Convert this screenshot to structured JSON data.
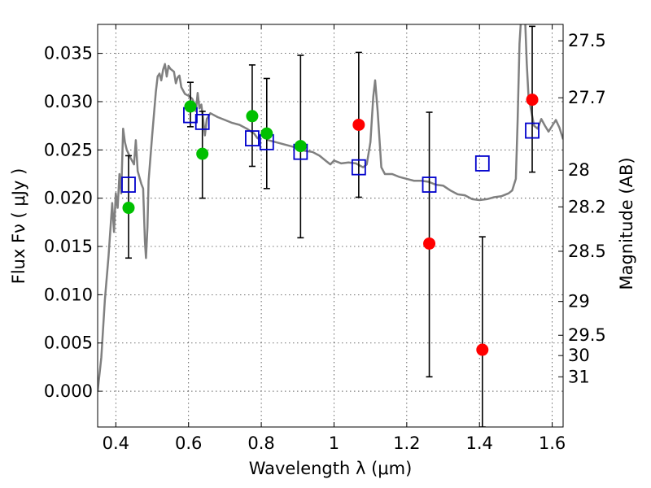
{
  "chart_data": {
    "type": "scatter",
    "xlabel": "Wavelength  λ (μm)",
    "ylabel": "Flux  Fν  ( μJy )",
    "ylabel_right": "Magnitude (AB)",
    "xlim": [
      0.35,
      1.63
    ],
    "ylim": [
      -0.0037,
      0.038
    ],
    "x_ticks": [
      0.4,
      0.6,
      0.8,
      1.0,
      1.2,
      1.4,
      1.6
    ],
    "x_tick_labels": [
      "0.4",
      "0.6",
      "0.8",
      "1",
      "1.2",
      "1.4",
      "1.6"
    ],
    "y_ticks": [
      0.0,
      0.005,
      0.01,
      0.015,
      0.02,
      0.025,
      0.03,
      0.035
    ],
    "y_tick_labels": [
      "0.000",
      "0.005",
      "0.010",
      "0.015",
      "0.020",
      "0.025",
      "0.030",
      "0.035"
    ],
    "right_ticks": [
      {
        "label": "27.5",
        "flux": 0.0363
      },
      {
        "label": "27.7",
        "flux": 0.0304
      },
      {
        "label": "28",
        "flux": 0.0229
      },
      {
        "label": "28.2",
        "flux": 0.0191
      },
      {
        "label": "28.5",
        "flux": 0.0145
      },
      {
        "label": "29",
        "flux": 0.0093
      },
      {
        "label": "29.5",
        "flux": 0.0058
      },
      {
        "label": "30",
        "flux": 0.0037
      },
      {
        "label": "31",
        "flux": 0.0015
      }
    ],
    "grid": true,
    "series": [
      {
        "style": "model-sed-line",
        "color": "#808080",
        "points": [
          [
            0.35,
            0.0
          ],
          [
            0.36,
            0.0035
          ],
          [
            0.37,
            0.0095
          ],
          [
            0.38,
            0.014
          ],
          [
            0.39,
            0.0195
          ],
          [
            0.395,
            0.0165
          ],
          [
            0.4,
            0.0205
          ],
          [
            0.405,
            0.019
          ],
          [
            0.41,
            0.0225
          ],
          [
            0.415,
            0.0205
          ],
          [
            0.42,
            0.0272
          ],
          [
            0.425,
            0.0258
          ],
          [
            0.43,
            0.025
          ],
          [
            0.44,
            0.0242
          ],
          [
            0.45,
            0.0235
          ],
          [
            0.455,
            0.026
          ],
          [
            0.46,
            0.0228
          ],
          [
            0.47,
            0.0215
          ],
          [
            0.475,
            0.021
          ],
          [
            0.48,
            0.0155
          ],
          [
            0.483,
            0.0138
          ],
          [
            0.487,
            0.017
          ],
          [
            0.49,
            0.0218
          ],
          [
            0.5,
            0.0265
          ],
          [
            0.51,
            0.031
          ],
          [
            0.515,
            0.0326
          ],
          [
            0.52,
            0.0329
          ],
          [
            0.525,
            0.0322
          ],
          [
            0.53,
            0.0333
          ],
          [
            0.535,
            0.0339
          ],
          [
            0.54,
            0.0326
          ],
          [
            0.545,
            0.0337
          ],
          [
            0.55,
            0.0334
          ],
          [
            0.56,
            0.0331
          ],
          [
            0.565,
            0.0319
          ],
          [
            0.57,
            0.0325
          ],
          [
            0.575,
            0.0327
          ],
          [
            0.58,
            0.0315
          ],
          [
            0.59,
            0.0308
          ],
          [
            0.6,
            0.0306
          ],
          [
            0.61,
            0.0303
          ],
          [
            0.615,
            0.0299
          ],
          [
            0.62,
            0.029
          ],
          [
            0.625,
            0.0309
          ],
          [
            0.63,
            0.0293
          ],
          [
            0.635,
            0.0297
          ],
          [
            0.64,
            0.0282
          ],
          [
            0.645,
            0.0265
          ],
          [
            0.65,
            0.0282
          ],
          [
            0.66,
            0.0288
          ],
          [
            0.68,
            0.0284
          ],
          [
            0.7,
            0.0281
          ],
          [
            0.72,
            0.0278
          ],
          [
            0.74,
            0.0276
          ],
          [
            0.76,
            0.0272
          ],
          [
            0.78,
            0.0267
          ],
          [
            0.79,
            0.0262
          ],
          [
            0.8,
            0.0266
          ],
          [
            0.82,
            0.026
          ],
          [
            0.84,
            0.0258
          ],
          [
            0.86,
            0.0256
          ],
          [
            0.88,
            0.0254
          ],
          [
            0.9,
            0.0252
          ],
          [
            0.92,
            0.0249
          ],
          [
            0.94,
            0.0248
          ],
          [
            0.96,
            0.0244
          ],
          [
            0.98,
            0.0238
          ],
          [
            0.99,
            0.0235
          ],
          [
            1.0,
            0.0239
          ],
          [
            1.02,
            0.0236
          ],
          [
            1.04,
            0.0237
          ],
          [
            1.06,
            0.0236
          ],
          [
            1.08,
            0.0232
          ],
          [
            1.09,
            0.0235
          ],
          [
            1.1,
            0.0258
          ],
          [
            1.108,
            0.0305
          ],
          [
            1.113,
            0.0322
          ],
          [
            1.12,
            0.029
          ],
          [
            1.13,
            0.0232
          ],
          [
            1.14,
            0.0225
          ],
          [
            1.16,
            0.0225
          ],
          [
            1.18,
            0.0222
          ],
          [
            1.2,
            0.022
          ],
          [
            1.22,
            0.0218
          ],
          [
            1.24,
            0.0218
          ],
          [
            1.26,
            0.0217
          ],
          [
            1.28,
            0.0214
          ],
          [
            1.3,
            0.0213
          ],
          [
            1.32,
            0.0208
          ],
          [
            1.34,
            0.0204
          ],
          [
            1.36,
            0.0203
          ],
          [
            1.38,
            0.0199
          ],
          [
            1.4,
            0.0198
          ],
          [
            1.42,
            0.0199
          ],
          [
            1.44,
            0.0201
          ],
          [
            1.46,
            0.0202
          ],
          [
            1.48,
            0.0205
          ],
          [
            1.49,
            0.0208
          ],
          [
            1.5,
            0.022
          ],
          [
            1.505,
            0.028
          ],
          [
            1.51,
            0.036
          ],
          [
            1.515,
            0.039
          ],
          [
            1.525,
            0.039
          ],
          [
            1.53,
            0.034
          ],
          [
            1.535,
            0.0305
          ],
          [
            1.54,
            0.0295
          ],
          [
            1.55,
            0.0275
          ],
          [
            1.56,
            0.0272
          ],
          [
            1.57,
            0.0282
          ],
          [
            1.58,
            0.0275
          ],
          [
            1.59,
            0.0269
          ],
          [
            1.6,
            0.0275
          ],
          [
            1.61,
            0.0281
          ],
          [
            1.62,
            0.0273
          ],
          [
            1.63,
            0.0261
          ]
        ]
      },
      {
        "style": "open-blue-squares",
        "color": "#0000cc",
        "points": [
          [
            0.435,
            0.0214
          ],
          [
            0.605,
            0.0286
          ],
          [
            0.638,
            0.0279
          ],
          [
            0.775,
            0.0262
          ],
          [
            0.815,
            0.0258
          ],
          [
            0.908,
            0.0248
          ],
          [
            1.068,
            0.0232
          ],
          [
            1.262,
            0.0214
          ],
          [
            1.408,
            0.0236
          ],
          [
            1.545,
            0.027
          ]
        ]
      },
      {
        "style": "green-dots",
        "color": "#00c000",
        "points": [
          [
            0.435,
            0.019
          ],
          [
            0.605,
            0.0295
          ],
          [
            0.638,
            0.0246
          ],
          [
            0.775,
            0.0285
          ],
          [
            0.815,
            0.0267
          ],
          [
            0.908,
            0.0254
          ]
        ]
      },
      {
        "style": "red-dots",
        "color": "#ff0000",
        "points": [
          [
            1.068,
            0.0276
          ],
          [
            1.262,
            0.0153
          ],
          [
            1.408,
            0.0043
          ],
          [
            1.545,
            0.0302
          ]
        ]
      }
    ],
    "error_bars": [
      {
        "x": 0.435,
        "low": 0.0138,
        "high": 0.0244
      },
      {
        "x": 0.605,
        "low": 0.0274,
        "high": 0.032
      },
      {
        "x": 0.638,
        "low": 0.02,
        "high": 0.029
      },
      {
        "x": 0.775,
        "low": 0.0233,
        "high": 0.0338
      },
      {
        "x": 0.815,
        "low": 0.021,
        "high": 0.0324
      },
      {
        "x": 0.908,
        "low": 0.0159,
        "high": 0.0348
      },
      {
        "x": 1.068,
        "low": 0.0201,
        "high": 0.0351
      },
      {
        "x": 1.262,
        "low": 0.0015,
        "high": 0.0289
      },
      {
        "x": 1.408,
        "low": -0.0037,
        "high": 0.016
      },
      {
        "x": 1.545,
        "low": 0.0227,
        "high": 0.0378
      }
    ]
  }
}
